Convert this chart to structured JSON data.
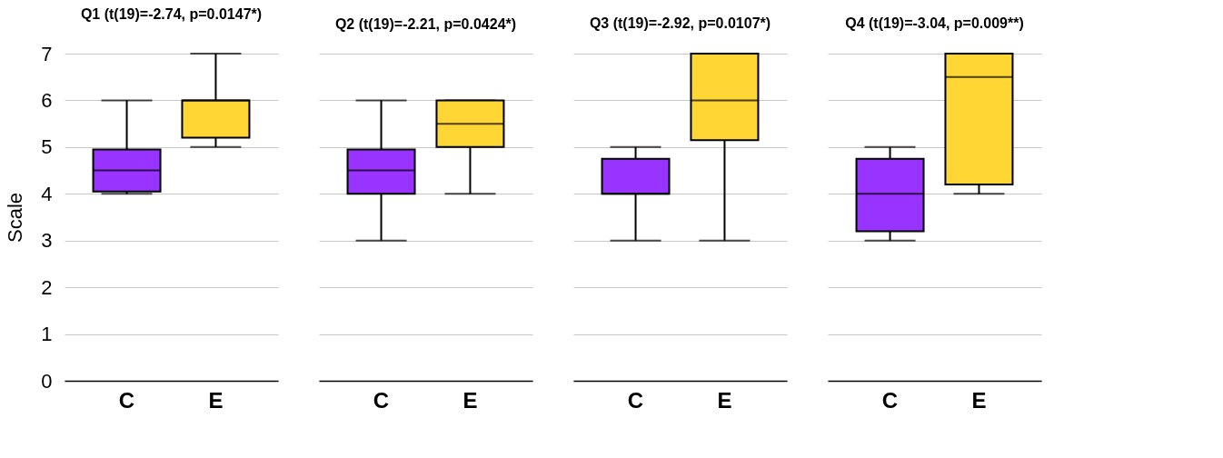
{
  "chart_data": [
    {
      "type": "box",
      "title": "Q1 (t(19)=-2.74, p=0.0147*)",
      "ylabel": "Scale",
      "categories": [
        "C",
        "E"
      ],
      "colors": [
        "#9933ff",
        "#ffd633"
      ],
      "ylim": [
        0,
        7
      ],
      "yticks": [
        0,
        1,
        2,
        3,
        4,
        5,
        6,
        7
      ],
      "grid": "y",
      "boxes": [
        {
          "low": 4,
          "q1": 4.05,
          "median": 4.5,
          "q3": 4.95,
          "high": 6
        },
        {
          "low": 5,
          "q1": 5.2,
          "median": 6,
          "q3": 6,
          "high": 7
        }
      ]
    },
    {
      "type": "box",
      "title": "Q2 (t(19)=-2.21, p=0.0424*)",
      "categories": [
        "C",
        "E"
      ],
      "colors": [
        "#9933ff",
        "#ffd633"
      ],
      "ylim": [
        0,
        7
      ],
      "yticks": [
        0,
        1,
        2,
        3,
        4,
        5,
        6,
        7
      ],
      "grid": "y",
      "tick_labels": "x",
      "boxes": [
        {
          "low": 3,
          "q1": 4,
          "median": 4.5,
          "q3": 4.95,
          "high": 6
        },
        {
          "low": 4,
          "q1": 5,
          "median": 5.5,
          "q3": 6,
          "high": 6
        }
      ]
    },
    {
      "type": "box",
      "title": "Q3 (t(19)=-2.92, p=0.0107*)",
      "categories": [
        "C",
        "E"
      ],
      "colors": [
        "#9933ff",
        "#ffd633"
      ],
      "ylim": [
        0,
        7
      ],
      "yticks": [
        0,
        1,
        2,
        3,
        4,
        5,
        6,
        7
      ],
      "grid": "y",
      "tick_labels": "x",
      "boxes": [
        {
          "low": 3,
          "q1": 4,
          "median": 4,
          "q3": 4.75,
          "high": 5
        },
        {
          "low": 3,
          "q1": 5.15,
          "median": 6,
          "q3": 7,
          "high": 7
        }
      ]
    },
    {
      "type": "box",
      "title": "Q4 (t(19)=-3.04, p=0.009**)",
      "categories": [
        "C",
        "E"
      ],
      "colors": [
        "#9933ff",
        "#ffd633"
      ],
      "ylim": [
        0,
        7
      ],
      "yticks": [
        0,
        1,
        2,
        3,
        4,
        5,
        6,
        7
      ],
      "grid": "y",
      "tick_labels": "x",
      "boxes": [
        {
          "low": 3,
          "q1": 3.2,
          "median": 4,
          "q3": 4.75,
          "high": 5
        },
        {
          "low": 4,
          "q1": 4.2,
          "median": 6.5,
          "q3": 7,
          "high": 7
        }
      ]
    }
  ]
}
